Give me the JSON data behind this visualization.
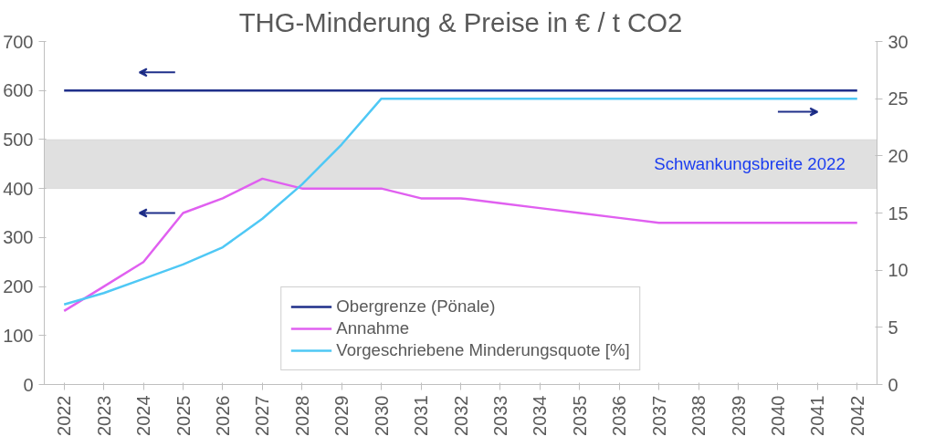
{
  "chart_data": {
    "type": "line",
    "title": "THG-Minderung & Preise in € / t CO2",
    "categories": [
      "2022",
      "2023",
      "2024",
      "2025",
      "2026",
      "2027",
      "2028",
      "2029",
      "2030",
      "2031",
      "2032",
      "2033",
      "2034",
      "2035",
      "2036",
      "2037",
      "2038",
      "2039",
      "2040",
      "2041",
      "2042"
    ],
    "series": [
      {
        "name": "Obergrenze (Pönale)",
        "color": "#1f2f8a",
        "values": [
          600,
          600,
          600,
          600,
          600,
          600,
          600,
          600,
          600,
          600,
          600,
          600,
          600,
          600,
          600,
          600,
          600,
          600,
          600,
          600,
          600
        ]
      },
      {
        "name": "Annahme",
        "color": "#e060f0",
        "values": [
          150,
          200,
          250,
          350,
          380,
          420,
          400,
          400,
          400,
          380,
          380,
          370,
          360,
          350,
          340,
          330,
          330,
          330,
          330,
          330,
          330
        ]
      },
      {
        "name": "Vorgeschriebene Minderungsquote [%]",
        "color": "#4fc8f5",
        "axis": "y2",
        "values": [
          7,
          8,
          9.25,
          10.5,
          12,
          14.5,
          17.5,
          21,
          25,
          25,
          25,
          25,
          25,
          25,
          25,
          25,
          25,
          25,
          25,
          25,
          25
        ]
      }
    ],
    "ylim": [
      0,
      700
    ],
    "yticks": [
      0,
      100,
      200,
      300,
      400,
      500,
      600,
      700
    ],
    "y2lim": [
      0,
      30
    ],
    "y2ticks": [
      0,
      5,
      10,
      15,
      20,
      25,
      30
    ],
    "bands": [
      {
        "axis": "y",
        "from": 400,
        "to": 500,
        "label": "Schwankungsbreite 2022",
        "color": "#e0e0e0"
      }
    ],
    "grid": false,
    "legend": "bottom",
    "marker": "none",
    "line_style": "solid"
  }
}
